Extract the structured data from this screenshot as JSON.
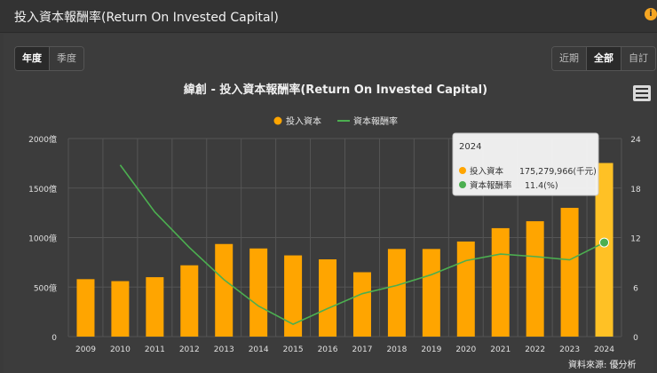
{
  "header": {
    "title": "投入資本報酬率(Return On Invested Capital)"
  },
  "period_toggle": [
    {
      "label": "年度",
      "active": true
    },
    {
      "label": "季度",
      "active": false
    }
  ],
  "range_toggle": [
    {
      "label": "近期",
      "active": false
    },
    {
      "label": "全部",
      "active": true
    },
    {
      "label": "自訂",
      "active": false
    }
  ],
  "colors": {
    "bar": "#ffa500",
    "bar_highlight": "#ffc125",
    "line": "#4caf50",
    "background": "#3c3c3c"
  },
  "chart_data": {
    "type": "bar",
    "title": "緯創 - 投入資本報酬率(Return On Invested Capital)",
    "categories": [
      "2009",
      "2010",
      "2011",
      "2012",
      "2013",
      "2014",
      "2015",
      "2016",
      "2017",
      "2018",
      "2019",
      "2020",
      "2021",
      "2022",
      "2023",
      "2024"
    ],
    "series": [
      {
        "name": "投入資本",
        "type": "bar",
        "axis": "left",
        "values": [
          580,
          560,
          600,
          720,
          935,
          890,
          820,
          780,
          650,
          885,
          885,
          960,
          1095,
          1165,
          1300,
          1753
        ]
      },
      {
        "name": "資本報酬率",
        "type": "line",
        "axis": "right",
        "values": [
          null,
          20.8,
          15.1,
          10.8,
          6.9,
          3.7,
          1.5,
          3.4,
          5.2,
          6.2,
          7.5,
          9.2,
          10.0,
          9.7,
          9.3,
          11.4
        ]
      }
    ],
    "left_axis": {
      "ticks": [
        "0",
        "500億",
        "1000億",
        "1500億",
        "2000億"
      ],
      "min": 0,
      "max": 2000
    },
    "right_axis": {
      "ticks": [
        "0",
        "6",
        "12",
        "18",
        "24"
      ],
      "min": 0,
      "max": 24
    },
    "legend": {
      "position": "top-center"
    },
    "grid": true,
    "tooltip": {
      "title": "2024",
      "rows": [
        {
          "label": "投入資本",
          "value": "175,279,966(千元)"
        },
        {
          "label": "資本報酬率",
          "value": "11.4(%)"
        }
      ]
    }
  },
  "source_label": "資料來源: 優分析"
}
